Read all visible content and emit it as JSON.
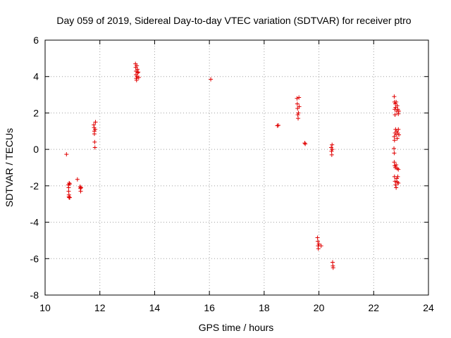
{
  "chart_data": {
    "type": "scatter",
    "title": "Day 059 of 2019, Sidereal Day-to-day VTEC variation (SDTVAR) for receiver ptro",
    "xlabel": "GPS time / hours",
    "ylabel": "SDTVAR / TECUs",
    "xlim": [
      10,
      24
    ],
    "ylim": [
      -8,
      6
    ],
    "xticks": [
      10,
      12,
      14,
      16,
      18,
      20,
      22,
      24
    ],
    "yticks": [
      -8,
      -6,
      -4,
      -2,
      0,
      2,
      4,
      6
    ],
    "xtick_labels": [
      "10",
      "12",
      "14",
      "16",
      "18",
      "20",
      "22",
      "24"
    ],
    "ytick_labels": [
      "-8",
      "-6",
      "-4",
      "-2",
      "0",
      "2",
      "4",
      "6"
    ],
    "grid": true,
    "marker": "+",
    "marker_color": "#e00000",
    "series": [
      {
        "name": "SDTVAR",
        "points": [
          [
            10.78,
            -0.27
          ],
          [
            10.85,
            -1.95
          ],
          [
            10.86,
            -2.1
          ],
          [
            10.86,
            -2.3
          ],
          [
            10.87,
            -2.5
          ],
          [
            10.87,
            -2.6
          ],
          [
            10.88,
            -2.65
          ],
          [
            10.88,
            -1.85
          ],
          [
            10.9,
            -1.9
          ],
          [
            10.9,
            -2.65
          ],
          [
            11.18,
            -1.65
          ],
          [
            11.28,
            -2.05
          ],
          [
            11.29,
            -2.15
          ],
          [
            11.3,
            -2.3
          ],
          [
            11.31,
            -2.1
          ],
          [
            11.78,
            1.35
          ],
          [
            11.79,
            1.2
          ],
          [
            11.8,
            1.0
          ],
          [
            11.8,
            0.85
          ],
          [
            11.81,
            0.4
          ],
          [
            11.82,
            0.1
          ],
          [
            11.83,
            1.1
          ],
          [
            11.84,
            1.5
          ],
          [
            13.3,
            4.7
          ],
          [
            13.31,
            4.5
          ],
          [
            13.32,
            4.3
          ],
          [
            13.32,
            4.1
          ],
          [
            13.33,
            3.9
          ],
          [
            13.34,
            3.8
          ],
          [
            13.35,
            4.6
          ],
          [
            13.36,
            4.0
          ],
          [
            13.37,
            4.4
          ],
          [
            13.38,
            4.2
          ],
          [
            13.4,
            4.25
          ],
          [
            13.42,
            3.95
          ],
          [
            16.05,
            3.85
          ],
          [
            18.48,
            1.3
          ],
          [
            18.52,
            1.32
          ],
          [
            19.2,
            2.8
          ],
          [
            19.21,
            2.5
          ],
          [
            19.22,
            2.25
          ],
          [
            19.23,
            1.9
          ],
          [
            19.24,
            1.7
          ],
          [
            19.25,
            2.0
          ],
          [
            19.27,
            2.85
          ],
          [
            19.28,
            2.35
          ],
          [
            19.48,
            0.35
          ],
          [
            19.5,
            0.3
          ],
          [
            19.95,
            -4.85
          ],
          [
            19.96,
            -5.05
          ],
          [
            19.97,
            -5.3
          ],
          [
            19.98,
            -5.45
          ],
          [
            20.0,
            -5.2
          ],
          [
            20.08,
            -5.3
          ],
          [
            20.45,
            0.1
          ],
          [
            20.46,
            -0.1
          ],
          [
            20.47,
            -0.3
          ],
          [
            20.48,
            0.25
          ],
          [
            20.49,
            0.0
          ],
          [
            20.5,
            -6.2
          ],
          [
            20.51,
            -6.4
          ],
          [
            20.52,
            -6.5
          ],
          [
            22.75,
            2.9
          ],
          [
            22.76,
            2.6
          ],
          [
            22.77,
            2.2
          ],
          [
            22.78,
            1.9
          ],
          [
            22.79,
            2.5
          ],
          [
            22.8,
            2.3
          ],
          [
            22.82,
            2.6
          ],
          [
            22.84,
            2.1
          ],
          [
            22.86,
            2.4
          ],
          [
            22.88,
            2.2
          ],
          [
            22.9,
            1.95
          ],
          [
            22.92,
            2.1
          ],
          [
            22.75,
            0.7
          ],
          [
            22.76,
            0.5
          ],
          [
            22.78,
            0.9
          ],
          [
            22.8,
            1.1
          ],
          [
            22.82,
            0.8
          ],
          [
            22.84,
            1.0
          ],
          [
            22.86,
            0.6
          ],
          [
            22.88,
            0.9
          ],
          [
            22.9,
            1.1
          ],
          [
            22.92,
            0.8
          ],
          [
            22.74,
            0.05
          ],
          [
            22.75,
            -0.2
          ],
          [
            22.75,
            -0.7
          ],
          [
            22.77,
            -0.9
          ],
          [
            22.79,
            -1.0
          ],
          [
            22.82,
            -0.85
          ],
          [
            22.86,
            -1.05
          ],
          [
            22.9,
            -1.1
          ],
          [
            22.76,
            -1.5
          ],
          [
            22.78,
            -1.75
          ],
          [
            22.8,
            -1.95
          ],
          [
            22.82,
            -2.1
          ],
          [
            22.84,
            -1.6
          ],
          [
            22.86,
            -1.8
          ],
          [
            22.88,
            -1.5
          ],
          [
            22.9,
            -1.85
          ]
        ]
      }
    ]
  }
}
